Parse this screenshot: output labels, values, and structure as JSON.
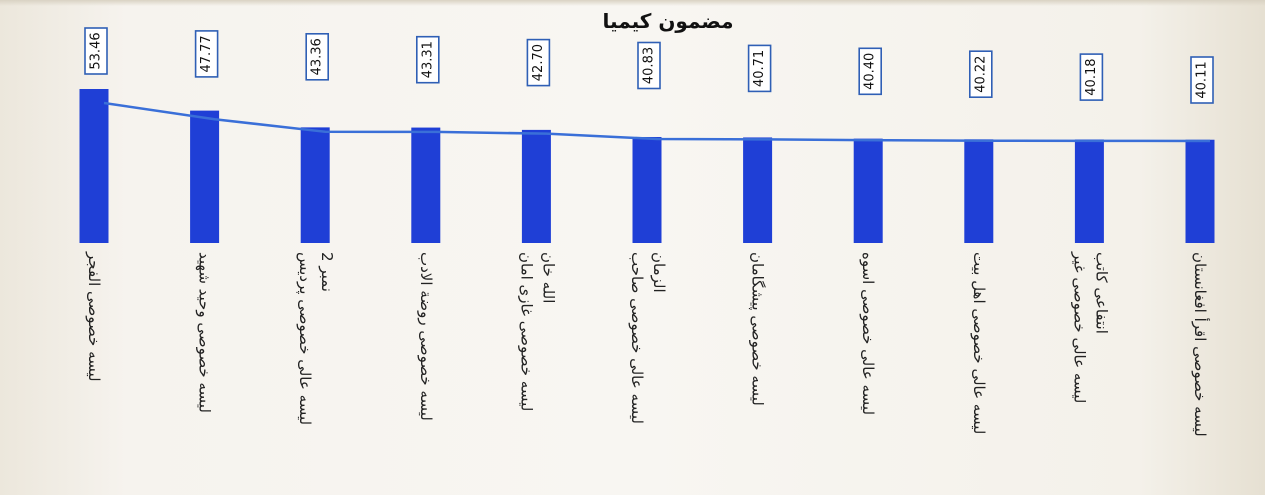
{
  "chart_data": {
    "type": "bar",
    "title": "مضمون كيميا",
    "xlabel": "",
    "ylabel": "",
    "ylim": [
      0,
      60
    ],
    "grid": false,
    "legend": "none",
    "trendline": true,
    "orientation": "vertical-rotated",
    "categories": [
      [
        "ليسه خصوصی الفجر"
      ],
      [
        "ليسه خصوصی وحيد شهيد"
      ],
      [
        "ليسه عالی خصوصی پرديس",
        "نمبر 2"
      ],
      [
        "ليسه خصوصی روضة الادب"
      ],
      [
        "ليسه خصوصی غازی امان",
        "الله خان"
      ],
      [
        "ليسه عالی خصوصی صاحب",
        "الزمان"
      ],
      [
        "ليسه خصوصی پيشگامان"
      ],
      [
        "ليسه عالی خصوصی اسوه"
      ],
      [
        "ليسه عالی خصوصی اهل بيت"
      ],
      [
        "ليسه عالی خصوصی غير",
        "انتفاعی کاتب"
      ],
      [
        "ليسه خصوصی اقرأ افغانستان"
      ]
    ],
    "values": [
      53.46,
      47.77,
      43.36,
      43.31,
      42.7,
      40.83,
      40.71,
      40.4,
      40.22,
      40.18,
      40.11
    ],
    "value_labels": [
      "53.46",
      "47.77",
      "43.36",
      "43.31",
      "42.70",
      "40.83",
      "40.71",
      "40.40",
      "40.22",
      "40.18",
      "40.11"
    ],
    "colors": {
      "bar": "#1f3fd6",
      "trendline": "#3a6fd8",
      "label_box_border": "#2f5fb5",
      "label_box_fill": "#ffffff"
    }
  }
}
